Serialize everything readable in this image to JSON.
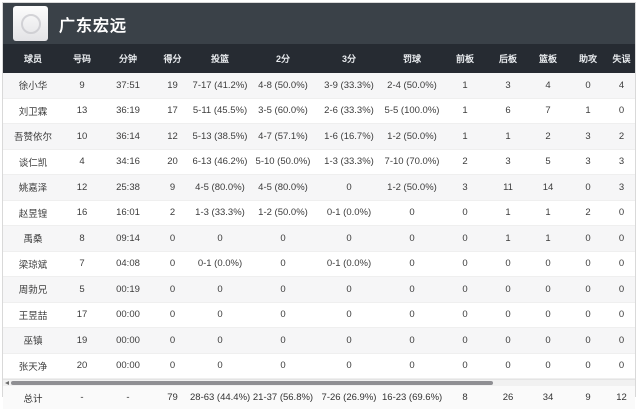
{
  "header": {
    "title": "广东宏远",
    "logo_icon": "team-logo-icon"
  },
  "colors": {
    "topbar_bg": "#3a4148",
    "thead_bg": "#262b32",
    "stripe_bg": "#f6f6f7",
    "totals_bg": "#fafafa",
    "cell_text": "#3c3c3c",
    "thumb": "#8f8f93",
    "frame_border": "#d9d9d9"
  },
  "table": {
    "columns": [
      "球员",
      "号码",
      "分钟",
      "得分",
      "投篮",
      "2分",
      "3分",
      "罚球",
      "前板",
      "后板",
      "篮板",
      "助攻",
      "失误"
    ],
    "rows": [
      [
        "徐小华",
        "9",
        "37:51",
        "19",
        "7-17 (41.2%)",
        "4-8 (50.0%)",
        "3-9 (33.3%)",
        "2-4 (50.0%)",
        "1",
        "3",
        "4",
        "0",
        "4"
      ],
      [
        "刘卫霖",
        "13",
        "36:19",
        "17",
        "5-11 (45.5%)",
        "3-5 (60.0%)",
        "2-6 (33.3%)",
        "5-5 (100.0%)",
        "1",
        "6",
        "7",
        "1",
        "0"
      ],
      [
        "吾赞依尔",
        "10",
        "36:14",
        "12",
        "5-13 (38.5%)",
        "4-7 (57.1%)",
        "1-6 (16.7%)",
        "1-2 (50.0%)",
        "1",
        "1",
        "2",
        "3",
        "2"
      ],
      [
        "谈仁凯",
        "4",
        "34:16",
        "20",
        "6-13 (46.2%)",
        "5-10 (50.0%)",
        "1-3 (33.3%)",
        "7-10 (70.0%)",
        "2",
        "3",
        "5",
        "3",
        "3"
      ],
      [
        "姚嘉泽",
        "12",
        "25:38",
        "9",
        "4-5 (80.0%)",
        "4-5 (80.0%)",
        "0",
        "1-2 (50.0%)",
        "3",
        "11",
        "14",
        "0",
        "3"
      ],
      [
        "赵昱锽",
        "16",
        "16:01",
        "2",
        "1-3 (33.3%)",
        "1-2 (50.0%)",
        "0-1 (0.0%)",
        "0",
        "0",
        "1",
        "1",
        "2",
        "0"
      ],
      [
        "禹桑",
        "8",
        "09:14",
        "0",
        "0",
        "0",
        "0",
        "0",
        "0",
        "1",
        "1",
        "0",
        "0"
      ],
      [
        "梁琼斌",
        "7",
        "04:08",
        "0",
        "0-1 (0.0%)",
        "0",
        "0-1 (0.0%)",
        "0",
        "0",
        "0",
        "0",
        "0",
        "0"
      ],
      [
        "周勃兄",
        "5",
        "00:19",
        "0",
        "0",
        "0",
        "0",
        "0",
        "0",
        "0",
        "0",
        "0",
        "0"
      ],
      [
        "王昱喆",
        "17",
        "00:00",
        "0",
        "0",
        "0",
        "0",
        "0",
        "0",
        "0",
        "0",
        "0",
        "0"
      ],
      [
        "巫镇",
        "19",
        "00:00",
        "0",
        "0",
        "0",
        "0",
        "0",
        "0",
        "0",
        "0",
        "0",
        "0"
      ],
      [
        "张天净",
        "20",
        "00:00",
        "0",
        "0",
        "0",
        "0",
        "0",
        "0",
        "0",
        "0",
        "0",
        "0"
      ]
    ],
    "totals": [
      "总计",
      "-",
      "-",
      "79",
      "28-63 (44.4%)",
      "21-37 (56.8%)",
      "7-26 (26.9%)",
      "16-23 (69.6%)",
      "8",
      "26",
      "34",
      "9",
      "12"
    ]
  },
  "scrollbar": {
    "left_arrow_icon": "scroll-left-arrow-icon",
    "thumb": "scrollbar-thumb"
  }
}
